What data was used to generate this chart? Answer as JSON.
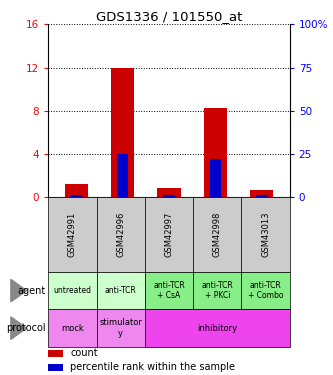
{
  "title": "GDS1336 / 101550_at",
  "samples": [
    "GSM42991",
    "GSM42996",
    "GSM42997",
    "GSM42998",
    "GSM43013"
  ],
  "count_values": [
    1.2,
    12.0,
    0.8,
    8.2,
    0.6
  ],
  "percentile_values": [
    1.0,
    25.0,
    1.2,
    22.0,
    1.3
  ],
  "left_ylim": [
    0,
    16
  ],
  "left_yticks": [
    0,
    4,
    8,
    12,
    16
  ],
  "right_ylim": [
    0,
    100
  ],
  "right_yticks": [
    0,
    25,
    50,
    75,
    100
  ],
  "right_yticklabels": [
    "0",
    "25",
    "50",
    "75",
    "100%"
  ],
  "bar_color_count": "#cc0000",
  "bar_color_pct": "#0000cc",
  "agent_labels": [
    "untreated",
    "anti-TCR",
    "anti-TCR\n+ CsA",
    "anti-TCR\n+ PKCi",
    "anti-TCR\n+ Combo"
  ],
  "agent_bg_light": "#ccffcc",
  "agent_bg_dark": "#88ee88",
  "sample_bg": "#cccccc",
  "protocol_mock_color": "#ee88ee",
  "protocol_stim_color": "#ee88ee",
  "protocol_inhib_color": "#ee44ee",
  "legend_count_color": "#cc0000",
  "legend_pct_color": "#0000cc",
  "bar_width": 0.5,
  "pct_bar_width": 0.25
}
